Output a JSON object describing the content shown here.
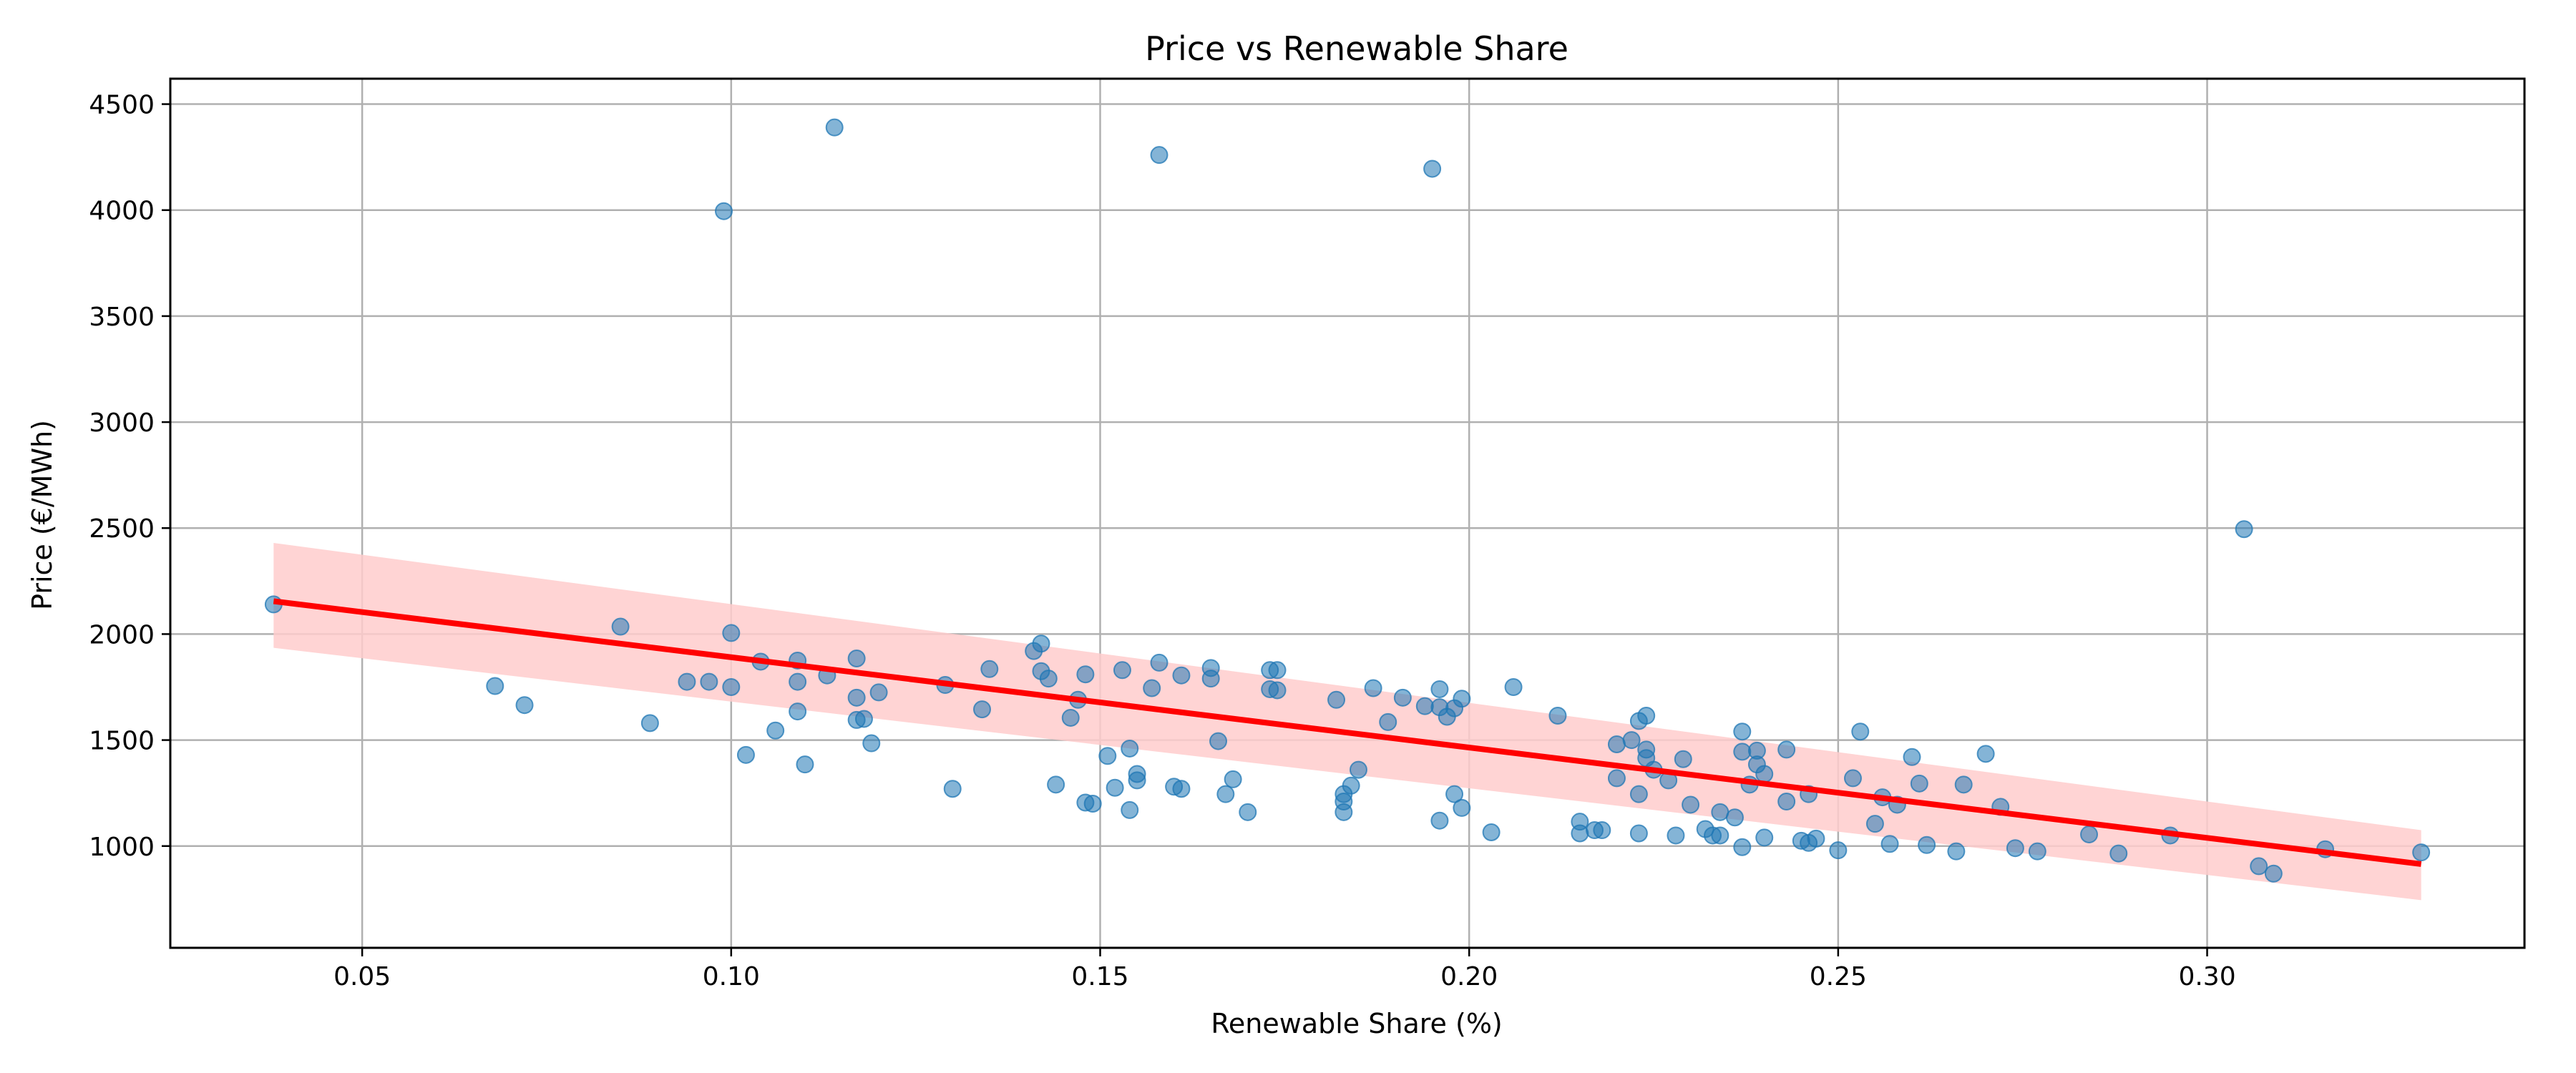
{
  "chart_data": {
    "type": "scatter",
    "title": "Price vs Renewable Share",
    "xlabel": "Renewable Share (%)",
    "ylabel": "Price (€/MWh)",
    "xlim": [
      0.024,
      0.343
    ],
    "ylim": [
      520,
      4620
    ],
    "xticks": [
      0.05,
      0.1,
      0.15,
      0.2,
      0.25,
      0.3
    ],
    "xtick_labels": [
      "0.05",
      "0.10",
      "0.15",
      "0.20",
      "0.25",
      "0.30"
    ],
    "yticks": [
      1000,
      1500,
      2000,
      2500,
      3000,
      3500,
      4000,
      4500
    ],
    "ytick_labels": [
      "1000",
      "1500",
      "2000",
      "2500",
      "3000",
      "3500",
      "4000",
      "4500"
    ],
    "grid": true,
    "colors": {
      "points": "#1f77b4",
      "trend": "#ff0000",
      "band": "#ffcccc",
      "grid": "#b0b0b0"
    },
    "series": [
      {
        "type": "scatter",
        "points": [
          [
            0.038,
            2140
          ],
          [
            0.068,
            1755
          ],
          [
            0.072,
            1665
          ],
          [
            0.085,
            2035
          ],
          [
            0.089,
            1580
          ],
          [
            0.094,
            1775
          ],
          [
            0.097,
            1775
          ],
          [
            0.099,
            3995
          ],
          [
            0.1,
            2005
          ],
          [
            0.1,
            1750
          ],
          [
            0.102,
            1430
          ],
          [
            0.104,
            1870
          ],
          [
            0.106,
            1545
          ],
          [
            0.109,
            1875
          ],
          [
            0.109,
            1775
          ],
          [
            0.109,
            1635
          ],
          [
            0.11,
            1385
          ],
          [
            0.113,
            1805
          ],
          [
            0.114,
            4390
          ],
          [
            0.117,
            1885
          ],
          [
            0.117,
            1700
          ],
          [
            0.117,
            1595
          ],
          [
            0.118,
            1600
          ],
          [
            0.119,
            1485
          ],
          [
            0.12,
            1725
          ],
          [
            0.129,
            1760
          ],
          [
            0.13,
            1270
          ],
          [
            0.134,
            1645
          ],
          [
            0.135,
            1835
          ],
          [
            0.141,
            1920
          ],
          [
            0.142,
            1955
          ],
          [
            0.142,
            1825
          ],
          [
            0.143,
            1790
          ],
          [
            0.144,
            1290
          ],
          [
            0.146,
            1605
          ],
          [
            0.147,
            1690
          ],
          [
            0.148,
            1810
          ],
          [
            0.148,
            1205
          ],
          [
            0.149,
            1200
          ],
          [
            0.151,
            1425
          ],
          [
            0.152,
            1275
          ],
          [
            0.153,
            1830
          ],
          [
            0.154,
            1460
          ],
          [
            0.154,
            1170
          ],
          [
            0.155,
            1340
          ],
          [
            0.155,
            1310
          ],
          [
            0.157,
            1745
          ],
          [
            0.158,
            1865
          ],
          [
            0.158,
            4260
          ],
          [
            0.16,
            1280
          ],
          [
            0.161,
            1270
          ],
          [
            0.161,
            1805
          ],
          [
            0.165,
            1840
          ],
          [
            0.165,
            1790
          ],
          [
            0.166,
            1495
          ],
          [
            0.167,
            1245
          ],
          [
            0.168,
            1315
          ],
          [
            0.17,
            1160
          ],
          [
            0.173,
            1830
          ],
          [
            0.173,
            1740
          ],
          [
            0.174,
            1735
          ],
          [
            0.174,
            1830
          ],
          [
            0.182,
            1690
          ],
          [
            0.183,
            1245
          ],
          [
            0.183,
            1210
          ],
          [
            0.183,
            1160
          ],
          [
            0.184,
            1285
          ],
          [
            0.185,
            1360
          ],
          [
            0.187,
            1745
          ],
          [
            0.189,
            1585
          ],
          [
            0.191,
            1700
          ],
          [
            0.194,
            1660
          ],
          [
            0.195,
            4195
          ],
          [
            0.196,
            1120
          ],
          [
            0.196,
            1655
          ],
          [
            0.196,
            1740
          ],
          [
            0.197,
            1610
          ],
          [
            0.198,
            1245
          ],
          [
            0.198,
            1650
          ],
          [
            0.199,
            1695
          ],
          [
            0.199,
            1180
          ],
          [
            0.203,
            1065
          ],
          [
            0.206,
            1750
          ],
          [
            0.212,
            1615
          ],
          [
            0.215,
            1060
          ],
          [
            0.215,
            1115
          ],
          [
            0.217,
            1075
          ],
          [
            0.218,
            1075
          ],
          [
            0.22,
            1320
          ],
          [
            0.22,
            1480
          ],
          [
            0.222,
            1500
          ],
          [
            0.223,
            1245
          ],
          [
            0.223,
            1590
          ],
          [
            0.223,
            1060
          ],
          [
            0.224,
            1455
          ],
          [
            0.224,
            1615
          ],
          [
            0.224,
            1415
          ],
          [
            0.225,
            1360
          ],
          [
            0.227,
            1310
          ],
          [
            0.228,
            1050
          ],
          [
            0.229,
            1410
          ],
          [
            0.23,
            1195
          ],
          [
            0.232,
            1080
          ],
          [
            0.233,
            1050
          ],
          [
            0.234,
            1050
          ],
          [
            0.234,
            1160
          ],
          [
            0.236,
            1135
          ],
          [
            0.237,
            1540
          ],
          [
            0.237,
            1445
          ],
          [
            0.237,
            995
          ],
          [
            0.238,
            1290
          ],
          [
            0.239,
            1385
          ],
          [
            0.239,
            1450
          ],
          [
            0.24,
            1040
          ],
          [
            0.24,
            1340
          ],
          [
            0.243,
            1210
          ],
          [
            0.243,
            1455
          ],
          [
            0.245,
            1025
          ],
          [
            0.246,
            1245
          ],
          [
            0.246,
            1015
          ],
          [
            0.247,
            1035
          ],
          [
            0.25,
            980
          ],
          [
            0.252,
            1320
          ],
          [
            0.253,
            1540
          ],
          [
            0.255,
            1105
          ],
          [
            0.256,
            1230
          ],
          [
            0.257,
            1010
          ],
          [
            0.258,
            1195
          ],
          [
            0.26,
            1420
          ],
          [
            0.261,
            1295
          ],
          [
            0.262,
            1005
          ],
          [
            0.266,
            975
          ],
          [
            0.267,
            1290
          ],
          [
            0.27,
            1435
          ],
          [
            0.272,
            1185
          ],
          [
            0.274,
            990
          ],
          [
            0.277,
            975
          ],
          [
            0.284,
            1055
          ],
          [
            0.288,
            965
          ],
          [
            0.295,
            1050
          ],
          [
            0.305,
            2495
          ],
          [
            0.307,
            905
          ],
          [
            0.309,
            870
          ],
          [
            0.316,
            985
          ],
          [
            0.329,
            970
          ]
        ]
      },
      {
        "type": "regression",
        "line": [
          [
            0.038,
            2155
          ],
          [
            0.329,
            915
          ]
        ],
        "band_upper": [
          [
            0.038,
            2430
          ],
          [
            0.329,
            1075
          ]
        ],
        "band_lower": [
          [
            0.038,
            1935
          ],
          [
            0.329,
            745
          ]
        ]
      }
    ]
  }
}
